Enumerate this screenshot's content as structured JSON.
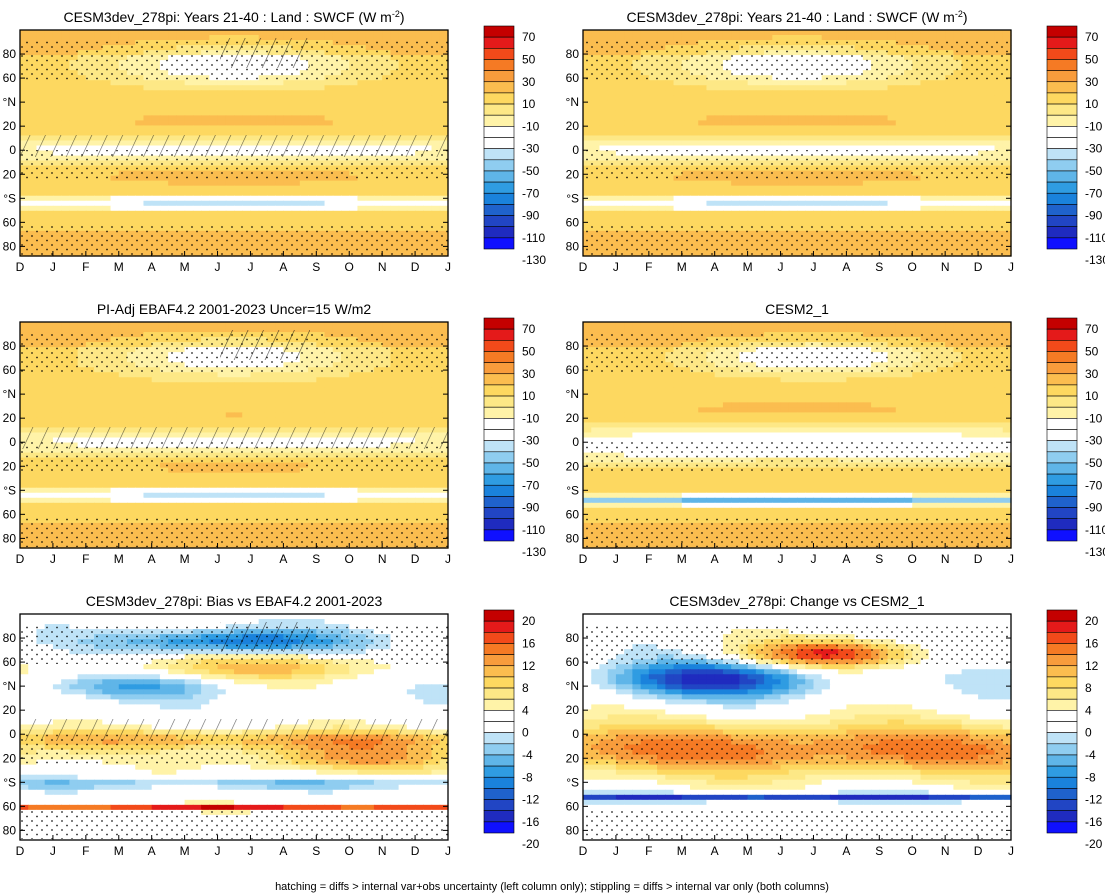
{
  "figure": {
    "footer": "hatching = diffs > internal var+obs uncertainty (left column only); stippling = diffs > internal var only (both columns)"
  },
  "axis": {
    "x_labels": [
      "D",
      "J",
      "F",
      "M",
      "A",
      "M",
      "J",
      "J",
      "A",
      "S",
      "O",
      "N",
      "D",
      "J"
    ],
    "y_labels": [
      "80",
      "60",
      "°N",
      "20",
      "0",
      "20",
      "°S",
      "60",
      "80"
    ],
    "ylim": [
      90,
      -90
    ]
  },
  "colorbars": {
    "absolute": {
      "labels": [
        "70",
        "50",
        "30",
        "10",
        "-10",
        "-30",
        "-50",
        "-70",
        "-90",
        "-110",
        "-130"
      ],
      "colors": [
        "#c40000",
        "#e41a1a",
        "#f24a1a",
        "#f57a24",
        "#f89c3c",
        "#fbbd4f",
        "#fdd860",
        "#fde886",
        "#fff3a8",
        "#ffffff",
        "#ffffff",
        "#bfe3f7",
        "#8fcdf0",
        "#5fb5e8",
        "#2f9ce2",
        "#1a82dc",
        "#1f62cc",
        "#2145c4",
        "#1f2bbf",
        "#0f10ff"
      ]
    },
    "difference": {
      "labels": [
        "20",
        "16",
        "12",
        "8",
        "4",
        "0",
        "-4",
        "-8",
        "-12",
        "-16",
        "-20"
      ],
      "colors": [
        "#c40000",
        "#e41a1a",
        "#f24a1a",
        "#f57a24",
        "#f89c3c",
        "#fbbd4f",
        "#fdd860",
        "#fde886",
        "#fff3a8",
        "#ffffff",
        "#ffffff",
        "#bfe3f7",
        "#8fcdf0",
        "#5fb5e8",
        "#2f9ce2",
        "#1a82dc",
        "#1f62cc",
        "#2145c4",
        "#1f2bbf",
        "#0f10ff"
      ]
    }
  },
  "chart_data": [
    {
      "type": "heatmap",
      "title": "CESM3dev_278pi: Years 21-40 : Land : SWCF (W m",
      "title_sup": "-2",
      "title_end": ")",
      "xlabel": "",
      "ylabel": "",
      "colorbar": "absolute",
      "kind": "abs",
      "hatching": true,
      "features": [
        {
          "lat": 62,
          "mon": 6.5,
          "dlat": 12,
          "dmon": 2.8,
          "val": -45
        },
        {
          "lat": 10,
          "mon": 6.5,
          "dlat": 8,
          "dmon": 4,
          "val": 8
        },
        {
          "lat": -5,
          "mon": 6.5,
          "dlat": 9,
          "dmon": 9,
          "val": -40
        },
        {
          "lat": -22,
          "mon": 6.5,
          "dlat": 6,
          "dmon": 3,
          "val": 12
        },
        {
          "lat": -48,
          "mon": 6.5,
          "dlat": 4,
          "dmon": 10,
          "val": -55
        }
      ]
    },
    {
      "type": "heatmap",
      "title": "CESM3dev_278pi: Years 21-40 : Land : SWCF (W m",
      "title_sup": "-2",
      "title_end": ")",
      "xlabel": "",
      "ylabel": "",
      "colorbar": "absolute",
      "kind": "abs",
      "hatching": false,
      "features": [
        {
          "lat": 62,
          "mon": 6.5,
          "dlat": 12,
          "dmon": 2.8,
          "val": -45
        },
        {
          "lat": 10,
          "mon": 6.5,
          "dlat": 8,
          "dmon": 4,
          "val": 8
        },
        {
          "lat": -5,
          "mon": 6.5,
          "dlat": 9,
          "dmon": 9,
          "val": -40
        },
        {
          "lat": -22,
          "mon": 6.5,
          "dlat": 6,
          "dmon": 3,
          "val": 12
        },
        {
          "lat": -48,
          "mon": 6.5,
          "dlat": 4,
          "dmon": 10,
          "val": -55
        }
      ]
    },
    {
      "type": "heatmap",
      "title": "PI-Adj EBAF4.2 2001-2023 Uncer=15 W/m2",
      "title_sup": "",
      "title_end": "",
      "xlabel": "",
      "ylabel": "",
      "colorbar": "absolute",
      "kind": "abs",
      "hatching": true,
      "features": [
        {
          "lat": 62,
          "mon": 6.5,
          "dlat": 12,
          "dmon": 2.8,
          "val": -40
        },
        {
          "lat": 10,
          "mon": 6.5,
          "dlat": 8,
          "dmon": 4,
          "val": 6
        },
        {
          "lat": -5,
          "mon": 6.5,
          "dlat": 9,
          "dmon": 9,
          "val": -38
        },
        {
          "lat": -22,
          "mon": 6.5,
          "dlat": 5,
          "dmon": 2.5,
          "val": 10
        },
        {
          "lat": -48,
          "mon": 6.5,
          "dlat": 4,
          "dmon": 10,
          "val": -55
        }
      ]
    },
    {
      "type": "heatmap",
      "title": "CESM2_1",
      "title_sup": "",
      "title_end": "",
      "xlabel": "",
      "ylabel": "",
      "colorbar": "absolute",
      "kind": "abs",
      "hatching": false,
      "features": [
        {
          "lat": 62,
          "mon": 7,
          "dlat": 10,
          "dmon": 2.4,
          "val": -50
        },
        {
          "lat": 15,
          "mon": 6.5,
          "dlat": 8,
          "dmon": 4,
          "val": 6
        },
        {
          "lat": -8,
          "mon": 6.5,
          "dlat": 11,
          "dmon": 9,
          "val": -48
        },
        {
          "lat": -22,
          "mon": 6.5,
          "dlat": 4,
          "dmon": 2.5,
          "val": 8
        },
        {
          "lat": -52,
          "mon": 6.5,
          "dlat": 3,
          "dmon": 10,
          "val": -80
        }
      ]
    },
    {
      "type": "heatmap",
      "title": "CESM3dev_278pi: Bias vs EBAF4.2 2001-2023",
      "title_sup": "",
      "title_end": "",
      "xlabel": "",
      "ylabel": "",
      "colorbar": "difference",
      "kind": "diff",
      "hatching": true,
      "features": [
        {
          "lat": 68,
          "mon": 6.5,
          "dlat": 7,
          "dmon": 2.5,
          "val": -14
        },
        {
          "lat": 48,
          "mon": 7.5,
          "dlat": 8,
          "dmon": 3,
          "val": 9
        },
        {
          "lat": 32,
          "mon": 3.5,
          "dlat": 7,
          "dmon": 2,
          "val": -8
        },
        {
          "lat": -10,
          "mon": 6.5,
          "dlat": 6,
          "dmon": 10,
          "val": 10
        },
        {
          "lat": -25,
          "mon": 10,
          "dlat": 8,
          "dmon": 2.5,
          "val": 11
        },
        {
          "lat": -45,
          "mon": 6.5,
          "dlat": 3,
          "dmon": 10,
          "val": -6
        },
        {
          "lat": -64,
          "mon": 6.5,
          "dlat": 1.5,
          "dmon": 12,
          "val": 18
        }
      ]
    },
    {
      "type": "heatmap",
      "title": "CESM3dev_278pi: Change vs CESM2_1",
      "title_sup": "",
      "title_end": "",
      "xlabel": "",
      "ylabel": "",
      "colorbar": "difference",
      "kind": "diff",
      "hatching": false,
      "features": [
        {
          "lat": 38,
          "mon": 4,
          "dlat": 10,
          "dmon": 2.2,
          "val": -18
        },
        {
          "lat": 58,
          "mon": 7.5,
          "dlat": 8,
          "dmon": 1.8,
          "val": 18
        },
        {
          "lat": -18,
          "mon": 6.5,
          "dlat": 15,
          "dmon": 12,
          "val": 14
        },
        {
          "lat": -56,
          "mon": 6.5,
          "dlat": 2,
          "dmon": 12,
          "val": -18
        }
      ]
    }
  ]
}
